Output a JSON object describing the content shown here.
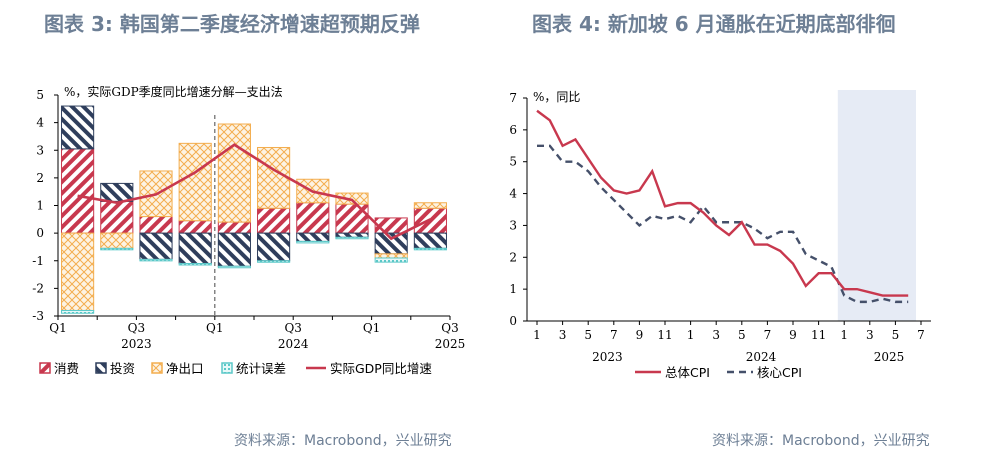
{
  "titles": {
    "left": "图表 3:  韩国第二季度经济增速超预期反弹",
    "right": "图表 4:  新加坡 6 月通胀在近期底部徘徊"
  },
  "sources": {
    "left": "资料来源：Macrobond，兴业研究",
    "right": "资料来源：Macrobond，兴业研究"
  },
  "colors": {
    "red": "#c8384e",
    "navy": "#2f3e5c",
    "orange": "#f3ad4e",
    "teal": "#5bc8c8",
    "shade": "#e6ebf5",
    "dash": "#45506a"
  },
  "chart_data": [
    {
      "type": "bar",
      "subtype": "stacked-bar-with-line",
      "unit_label": "%，实际GDP季度同比增速分解—支出法",
      "ylim": [
        -3,
        5
      ],
      "yticks": [
        "5",
        "4",
        "3",
        "2",
        "1",
        "0",
        "-1",
        "-2",
        "-3"
      ],
      "xtick_labels": [
        "Q1",
        "Q3",
        "Q1",
        "Q3",
        "Q1",
        "Q3"
      ],
      "xtick_index": [
        0,
        2,
        4,
        6,
        8,
        10
      ],
      "year_labels": [
        "2023",
        "2024",
        "2025"
      ],
      "year_index": [
        1.5,
        5.5,
        9.5
      ],
      "categories": [
        "2023Q1",
        "2023Q2",
        "2023Q3",
        "2023Q4",
        "2024Q1",
        "2024Q2",
        "2024Q3",
        "2024Q4",
        "2025Q1",
        "2025Q2"
      ],
      "series": [
        {
          "name": "消费",
          "values": [
            3.05,
            1.15,
            0.6,
            0.45,
            0.4,
            0.9,
            1.1,
            1.05,
            0.55,
            0.9
          ]
        },
        {
          "name": "投资",
          "values": [
            1.55,
            0.65,
            -0.95,
            -1.1,
            -1.2,
            -1.0,
            -0.3,
            -0.15,
            -0.75,
            -0.55
          ]
        },
        {
          "name": "净出口",
          "values": [
            -2.8,
            -0.55,
            1.65,
            2.8,
            3.55,
            2.2,
            0.85,
            0.4,
            -0.15,
            0.2
          ]
        },
        {
          "name": "统计误差",
          "values": [
            -0.1,
            -0.05,
            -0.05,
            -0.05,
            -0.05,
            -0.05,
            -0.05,
            -0.05,
            -0.15,
            -0.05
          ]
        },
        {
          "name": "实际GDP同比增速",
          "values": [
            1.35,
            1.1,
            1.4,
            2.2,
            3.2,
            2.3,
            1.5,
            1.2,
            -0.2,
            0.5
          ]
        }
      ],
      "divider_index": 4.5
    },
    {
      "type": "line",
      "unit_label": "%，同比",
      "ylim": [
        0,
        7
      ],
      "yticks": [
        "7",
        "6",
        "5",
        "4",
        "3",
        "2",
        "1",
        "0"
      ],
      "xtick_labels": [
        "1",
        "3",
        "5",
        "7",
        "9",
        "11",
        "1",
        "3",
        "5",
        "7",
        "9",
        "11",
        "1",
        "3",
        "5",
        "7"
      ],
      "year_labels": [
        "2023",
        "2024",
        "2025"
      ],
      "year_index": [
        5.5,
        17.5,
        27.5
      ],
      "shade_from_index": 23.5,
      "series": [
        {
          "name": "总体CPI",
          "values": [
            6.6,
            6.3,
            5.5,
            5.7,
            5.1,
            4.5,
            4.1,
            4.0,
            4.1,
            4.7,
            3.6,
            3.7,
            3.7,
            3.4,
            3.0,
            2.7,
            3.1,
            2.4,
            2.4,
            2.2,
            1.8,
            1.1,
            1.5,
            1.5,
            1.0,
            1.0,
            0.9,
            0.8,
            0.8,
            0.8
          ]
        },
        {
          "name": "核心CPI",
          "values": [
            5.5,
            5.5,
            5.0,
            5.0,
            4.7,
            4.2,
            3.8,
            3.4,
            3.0,
            3.3,
            3.2,
            3.3,
            3.1,
            3.6,
            3.1,
            3.1,
            3.1,
            2.9,
            2.6,
            2.8,
            2.8,
            2.1,
            1.9,
            1.7,
            0.8,
            0.6,
            0.6,
            0.7,
            0.6,
            0.6
          ]
        }
      ]
    }
  ]
}
